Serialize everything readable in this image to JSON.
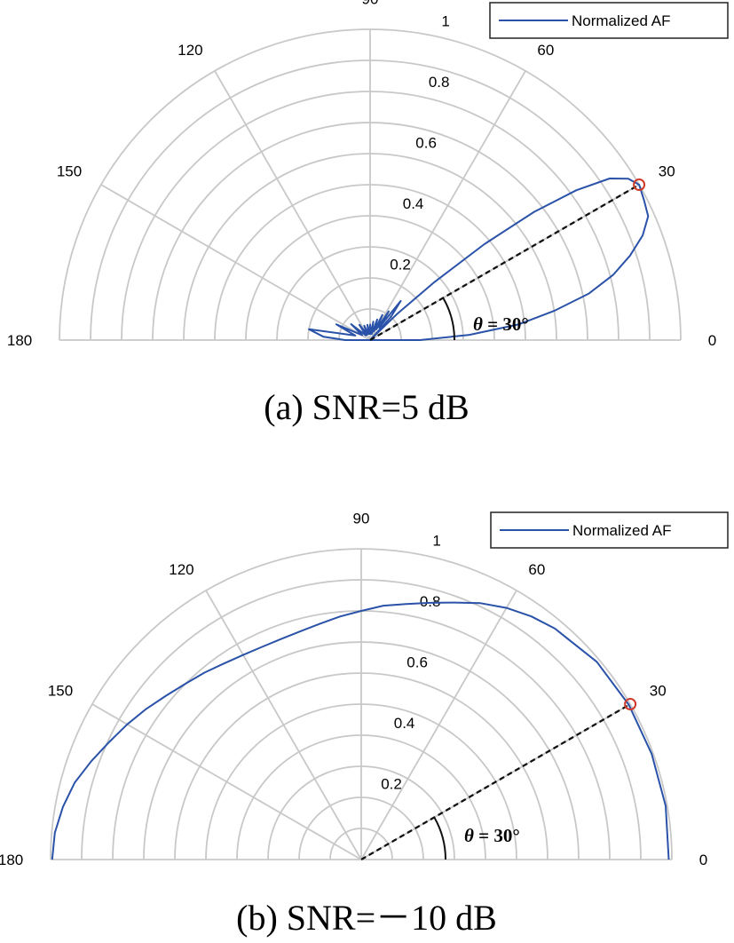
{
  "charts": [
    {
      "id": "a",
      "caption": "(a)  SNR=5  dB",
      "chart_data": {
        "type": "polar",
        "legend": {
          "label": "Normalized AF",
          "position": "top-right"
        },
        "angle_ticks": [
          "0",
          "30",
          "60",
          "90",
          "120",
          "150",
          "180"
        ],
        "radial_ticks": [
          "0.2",
          "0.4",
          "0.6",
          "0.8",
          "1"
        ],
        "r_range": [
          0,
          1
        ],
        "theta_range": [
          0,
          180
        ],
        "series": [
          {
            "name": "Normalized AF",
            "points": [
              [
                0,
                0.16
              ],
              [
                3,
                0.32
              ],
              [
                6,
                0.48
              ],
              [
                9,
                0.6
              ],
              [
                12,
                0.72
              ],
              [
                15,
                0.81
              ],
              [
                18,
                0.88
              ],
              [
                21,
                0.94
              ],
              [
                24,
                0.98
              ],
              [
                27,
                0.99
              ],
              [
                30,
                1.0
              ],
              [
                32,
                0.98
              ],
              [
                34,
                0.93
              ],
              [
                36,
                0.82
              ],
              [
                38,
                0.67
              ],
              [
                40,
                0.48
              ],
              [
                42,
                0.28
              ],
              [
                44,
                0.12
              ],
              [
                45,
                0.0
              ],
              [
                48,
                0.1
              ],
              [
                52,
                0.16
              ],
              [
                54,
                0.05
              ],
              [
                57,
                0.11
              ],
              [
                60,
                0.04
              ],
              [
                64,
                0.09
              ],
              [
                67,
                0.03
              ],
              [
                71,
                0.07
              ],
              [
                75,
                0.02
              ],
              [
                80,
                0.06
              ],
              [
                85,
                0.02
              ],
              [
                90,
                0.05
              ],
              [
                95,
                0.02
              ],
              [
                100,
                0.05
              ],
              [
                106,
                0.02
              ],
              [
                112,
                0.05
              ],
              [
                118,
                0.02
              ],
              [
                125,
                0.06
              ],
              [
                132,
                0.02
              ],
              [
                140,
                0.08
              ],
              [
                148,
                0.03
              ],
              [
                155,
                0.12
              ],
              [
                163,
                0.05
              ],
              [
                170,
                0.2
              ],
              [
                176,
                0.15
              ],
              [
                180,
                0.08
              ]
            ]
          }
        ],
        "marker": {
          "angle": 30,
          "r": 1.0
        },
        "annotation": {
          "theta_symbol": "θ",
          "text": " = 30°"
        }
      }
    },
    {
      "id": "b",
      "caption": "(b)  SNR=－10  dB",
      "chart_data": {
        "type": "polar",
        "legend": {
          "label": "Normalized AF",
          "position": "top-right"
        },
        "angle_ticks": [
          "0",
          "30",
          "60",
          "90",
          "120",
          "150",
          "180"
        ],
        "radial_ticks": [
          "0.2",
          "0.4",
          "0.6",
          "0.8",
          "1"
        ],
        "r_range": [
          0,
          1
        ],
        "theta_range": [
          0,
          180
        ],
        "series": [
          {
            "name": "Normalized AF",
            "points": [
              [
                0,
                0.99
              ],
              [
                10,
                0.995
              ],
              [
                20,
                0.995
              ],
              [
                30,
                0.995
              ],
              [
                40,
                0.99
              ],
              [
                50,
                0.97
              ],
              [
                55,
                0.955
              ],
              [
                60,
                0.935
              ],
              [
                65,
                0.91
              ],
              [
                70,
                0.88
              ],
              [
                75,
                0.855
              ],
              [
                80,
                0.835
              ],
              [
                85,
                0.82
              ],
              [
                90,
                0.8
              ],
              [
                95,
                0.785
              ],
              [
                100,
                0.77
              ],
              [
                105,
                0.76
              ],
              [
                110,
                0.755
              ],
              [
                115,
                0.755
              ],
              [
                120,
                0.76
              ],
              [
                125,
                0.77
              ],
              [
                130,
                0.785
              ],
              [
                135,
                0.8
              ],
              [
                140,
                0.82
              ],
              [
                145,
                0.845
              ],
              [
                150,
                0.87
              ],
              [
                155,
                0.895
              ],
              [
                160,
                0.925
              ],
              [
                165,
                0.955
              ],
              [
                170,
                0.975
              ],
              [
                175,
                0.99
              ],
              [
                180,
                0.995
              ]
            ]
          }
        ],
        "marker": {
          "angle": 30,
          "r": 1.0
        },
        "annotation": {
          "theta_symbol": "θ",
          "text": " = 30°"
        }
      }
    }
  ]
}
